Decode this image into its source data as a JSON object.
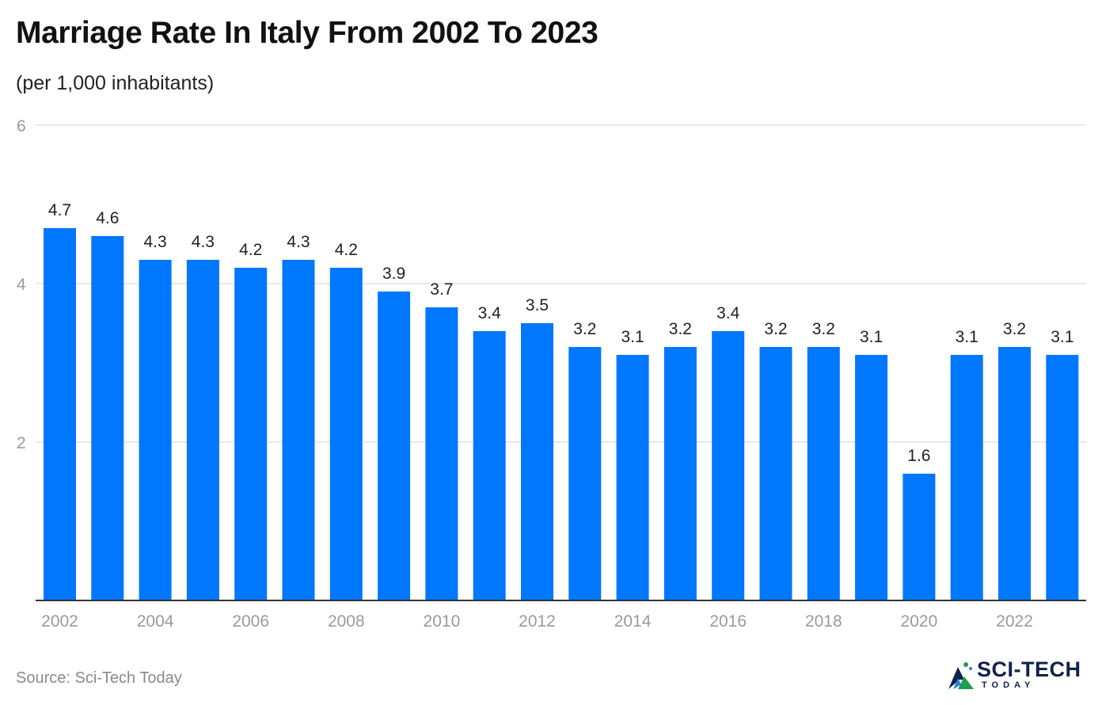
{
  "title": "Marriage Rate In Italy From 2002 To 2023",
  "subtitle": "(per 1,000 inhabitants)",
  "source": "Source: Sci-Tech Today",
  "logo": {
    "main": "SCI-TECH",
    "sub": "TODAY"
  },
  "colors": {
    "bar": "#0077ff",
    "grid": "#e2e2e2",
    "axis_label": "#9a9a9a",
    "value_label": "#222222"
  },
  "chart_data": {
    "type": "bar",
    "categories": [
      "2002",
      "2003",
      "2004",
      "2005",
      "2006",
      "2007",
      "2008",
      "2009",
      "2010",
      "2011",
      "2012",
      "2013",
      "2014",
      "2015",
      "2016",
      "2017",
      "2018",
      "2019",
      "2020",
      "2021",
      "2022",
      "2023"
    ],
    "values": [
      4.7,
      4.6,
      4.3,
      4.3,
      4.2,
      4.3,
      4.2,
      3.9,
      3.7,
      3.4,
      3.5,
      3.2,
      3.1,
      3.2,
      3.4,
      3.2,
      3.2,
      3.1,
      1.6,
      3.1,
      3.2,
      3.1
    ],
    "value_labels": [
      "4.7",
      "4.6",
      "4.3",
      "4.3",
      "4.2",
      "4.3",
      "4.2",
      "3.9",
      "3.7",
      "3.4",
      "3.5",
      "3.2",
      "3.1",
      "3.2",
      "3.4",
      "3.2",
      "3.2",
      "3.1",
      "1.6",
      "3.1",
      "3.2",
      "3.1"
    ],
    "x_tick_labels": [
      "2002",
      "2004",
      "2006",
      "2008",
      "2010",
      "2012",
      "2014",
      "2016",
      "2018",
      "2020",
      "2022"
    ],
    "y_ticks": [
      2,
      4,
      6
    ],
    "y_tick_labels": [
      "2",
      "4",
      "6"
    ],
    "ylim": [
      0,
      6
    ],
    "grid": true,
    "legend": "none",
    "xlabel": "",
    "ylabel": ""
  }
}
